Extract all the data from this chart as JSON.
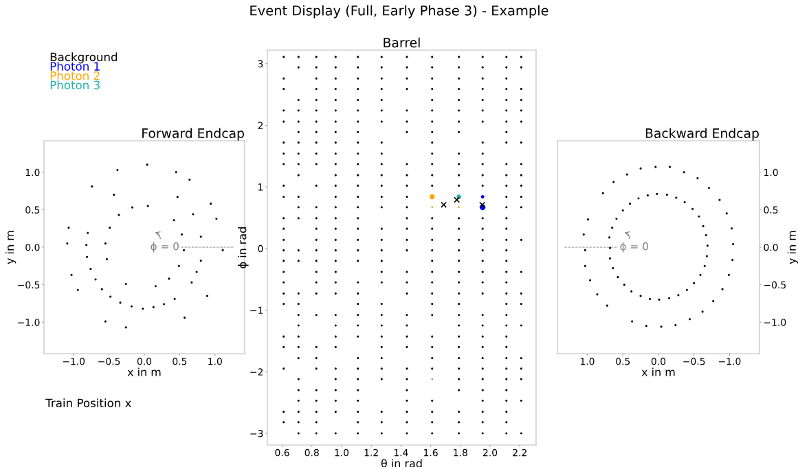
{
  "chart_data": [
    {
      "type": "scatter",
      "title": "Forward Endcap",
      "xlabel": "x in m",
      "ylabel": "y in m",
      "xlim": [
        -1.42,
        1.42
      ],
      "ylim": [
        -1.42,
        1.42
      ],
      "xticks": [
        {
          "value": -1.0,
          "label": "−1.0"
        },
        {
          "value": -0.5,
          "label": "−0.5"
        },
        {
          "value": 0,
          "label": "0.0"
        },
        0.5,
        {
          "value": 1,
          "label": "1.0"
        }
      ],
      "yticks": [
        {
          "value": -1.0,
          "label": "−1.0"
        },
        {
          "value": -0.5,
          "label": "−0.5"
        },
        {
          "value": 0,
          "label": "0.0"
        },
        0.5,
        {
          "value": 1,
          "label": "1.0"
        }
      ],
      "series": [
        {
          "color": "#000000",
          "x": [
            0.04,
            -0.38,
            0.45,
            0.64,
            -0.74,
            -0.43,
            0.47,
            0.94,
            -0.17,
            0.05,
            -0.36,
            0.69,
            1.02,
            0.42,
            -1.07,
            -0.49,
            -0.8,
            0.53,
            0.8,
            -1.09,
            -0.55,
            -0.82,
            0.56,
            1.11,
            -0.81,
            -0.53,
            0.8,
            -0.76,
            0.49,
            0.74,
            -1.03,
            -0.69,
            0.35,
            -0.26,
            0.16,
            0.67,
            -0.94,
            -0.6,
            0.89,
            -0.48,
            0.43,
            -0.34,
            0.28,
            -0.18,
            -0.02,
            0.13,
            0.57,
            -0.55,
            -0.26
          ],
          "values": [
            1.1,
            1.03,
            1.0,
            0.9,
            0.81,
            0.7,
            0.67,
            0.58,
            0.53,
            0.55,
            0.43,
            0.44,
            0.38,
            0.36,
            0.26,
            0.26,
            0.19,
            0.17,
            0.14,
            0.05,
            0.05,
            0.03,
            -0.04,
            -0.04,
            -0.13,
            -0.16,
            -0.18,
            -0.29,
            -0.25,
            -0.33,
            -0.37,
            -0.43,
            -0.42,
            -0.49,
            -0.52,
            -0.47,
            -0.57,
            -0.56,
            -0.65,
            -0.66,
            -0.69,
            -0.74,
            -0.76,
            -0.79,
            -0.82,
            -0.8,
            -0.94,
            -0.99,
            -1.07
          ]
        },
        {
          "type": "line",
          "color": "#808080",
          "line_style": "dashed",
          "x": [
            0.52,
            1.27
          ],
          "values": [
            0,
            0
          ]
        }
      ],
      "annotations": [
        "ϕ = 0",
        "Train Position x"
      ]
    },
    {
      "type": "scatter",
      "title": "Barrel",
      "xlabel": "θ in rad",
      "ylabel": "ϕ in rad",
      "xlim": [
        0.5,
        2.31
      ],
      "ylim": [
        -3.19,
        3.22
      ],
      "xticks": [
        0.6,
        0.8,
        {
          "value": 1,
          "label": "1.0"
        },
        1.2,
        1.4,
        1.6,
        1.8,
        {
          "value": 2,
          "label": "2.0"
        },
        2.2
      ],
      "yticks": [
        {
          "value": -3,
          "label": "−3"
        },
        {
          "value": -2,
          "label": "−2"
        },
        {
          "value": -1,
          "label": "−1"
        },
        0,
        1,
        2,
        3
      ],
      "legend": "top left",
      "series": [
        {
          "name": "Background",
          "color": "#000000",
          "x": [
            0.61,
            0.71,
            0.83,
            0.96,
            1.11,
            1.27,
            1.44,
            1.61,
            1.79,
            1.95,
            2.11,
            2.21,
            0.71,
            0.83,
            0.96,
            1.11,
            1.27,
            1.44,
            1.61,
            1.79,
            1.95,
            2.11,
            2.21,
            0.61,
            0.83,
            0.96,
            1.11,
            1.27,
            1.44,
            1.61,
            1.79,
            1.95,
            2.11,
            0.61,
            0.83,
            0.96,
            1.11,
            1.27,
            1.44,
            1.61,
            1.79,
            1.95,
            2.11,
            2.21,
            0.71,
            0.83,
            0.96,
            1.11,
            1.27,
            1.61,
            1.79,
            1.95,
            2.11,
            2.21,
            0.61,
            0.71,
            0.83,
            0.96,
            1.11,
            1.27,
            1.44,
            1.61,
            1.79,
            1.95,
            2.11,
            2.21,
            0.61,
            0.71,
            0.83,
            0.96,
            1.11,
            1.27,
            1.44,
            1.61,
            1.79,
            1.95,
            2.11,
            2.21,
            0.71,
            0.83,
            0.96,
            1.11,
            1.44,
            1.61,
            1.79,
            2.11,
            0.61,
            0.71,
            0.83,
            0.96,
            1.11,
            1.27,
            1.61,
            1.95,
            2.11,
            2.21,
            0.61,
            0.71,
            0.83,
            0.96,
            1.11,
            1.27,
            1.61,
            1.79,
            1.95,
            0.61,
            0.71,
            0.83,
            0.96,
            1.11,
            1.27,
            1.44,
            1.61,
            1.79,
            1.95,
            2.11,
            2.21,
            0.71,
            0.96,
            1.11,
            1.27,
            1.44,
            1.61,
            1.79,
            1.95,
            2.11,
            2.21,
            0.61,
            0.83,
            0.96,
            1.11,
            1.27,
            1.44,
            1.61,
            1.79,
            1.95,
            2.11,
            2.21,
            0.61,
            0.71,
            0.96,
            1.11,
            1.27,
            1.44,
            2.11,
            2.21,
            0.71,
            0.83,
            0.96,
            1.11,
            1.27,
            1.44,
            2.11,
            2.21,
            0.61,
            0.71,
            0.83,
            0.96,
            1.11,
            1.44,
            1.61,
            1.79,
            1.95,
            2.11,
            0.61,
            0.83,
            0.96,
            1.11,
            1.27,
            1.44,
            1.61,
            1.79,
            1.95,
            2.11,
            0.61,
            0.83,
            0.96,
            1.11,
            1.27,
            1.44,
            1.61,
            1.79,
            1.95,
            2.11,
            2.21,
            0.61,
            0.71,
            0.83,
            0.96,
            1.11,
            1.27,
            1.44,
            1.61,
            1.79,
            1.95,
            2.11,
            0.61,
            0.71,
            0.83,
            0.96,
            1.11,
            1.27,
            1.61,
            1.79,
            1.95,
            2.11,
            0.61,
            0.83,
            0.96,
            1.27,
            1.44,
            1.61,
            1.79,
            1.95,
            2.11,
            2.21,
            0.61,
            0.83,
            0.96,
            1.11,
            1.27,
            1.44,
            1.61,
            1.79,
            1.95,
            2.11,
            0.61,
            0.71,
            0.83,
            0.96,
            1.11,
            1.44,
            1.61,
            1.79,
            1.95,
            2.11,
            2.21,
            0.61,
            0.71,
            1.11,
            1.27,
            1.61,
            1.79,
            2.11,
            2.21,
            0.71,
            0.83,
            0.96,
            1.11,
            1.27,
            1.44,
            1.61,
            1.79,
            1.95,
            2.11,
            0.71,
            0.96,
            1.11,
            1.27,
            1.44,
            1.79,
            1.95,
            2.11,
            2.21,
            0.61,
            0.71,
            0.96,
            1.11,
            1.27,
            1.44,
            1.61,
            1.79,
            1.95,
            2.11,
            0.61,
            0.71,
            0.83,
            0.96,
            1.27,
            1.44,
            1.61,
            1.79,
            1.95,
            2.11,
            0.71,
            0.83,
            1.11,
            1.27,
            1.61,
            1.79,
            1.95,
            2.11,
            2.21,
            0.61,
            0.83,
            0.96,
            1.11,
            1.27,
            1.44,
            1.61,
            1.79,
            1.95,
            2.11,
            2.21,
            0.71,
            0.96,
            1.11,
            1.27,
            1.44,
            1.79,
            1.95,
            2.11,
            2.21,
            0.71,
            0.83,
            0.96,
            1.11,
            1.44,
            1.79,
            1.95,
            2.11,
            0.71,
            0.83,
            0.96,
            1.11,
            1.44,
            1.61,
            1.95,
            2.11,
            2.21,
            0.61,
            0.71,
            0.83,
            0.96,
            1.11,
            1.27,
            1.44,
            1.61,
            1.79,
            1.95,
            2.11,
            0.61,
            0.71,
            0.83,
            1.11,
            1.27,
            1.44,
            1.61,
            1.79,
            1.95,
            2.11,
            0.71,
            0.83,
            0.96,
            1.11,
            1.27,
            1.44,
            1.61,
            1.79,
            1.95,
            2.11,
            2.21
          ],
          "values": [
            3.11,
            3.11,
            3.11,
            3.11,
            3.11,
            3.11,
            3.11,
            3.11,
            3.11,
            3.11,
            3.11,
            3.11,
            2.94,
            2.94,
            2.94,
            2.94,
            2.94,
            2.94,
            2.94,
            2.94,
            2.94,
            2.94,
            2.94,
            2.76,
            2.76,
            2.76,
            2.76,
            2.76,
            2.76,
            2.76,
            2.76,
            2.76,
            2.76,
            2.59,
            2.59,
            2.59,
            2.59,
            2.59,
            2.59,
            2.59,
            2.59,
            2.59,
            2.59,
            2.59,
            2.41,
            2.41,
            2.41,
            2.41,
            2.41,
            2.41,
            2.41,
            2.41,
            2.41,
            2.41,
            2.24,
            2.24,
            2.24,
            2.24,
            2.24,
            2.24,
            2.24,
            2.24,
            2.24,
            2.24,
            2.24,
            2.24,
            2.06,
            2.06,
            2.06,
            2.06,
            2.06,
            2.06,
            2.06,
            2.06,
            2.06,
            2.06,
            2.06,
            2.06,
            1.89,
            1.89,
            1.89,
            1.89,
            1.89,
            1.89,
            1.89,
            1.89,
            1.72,
            1.72,
            1.72,
            1.72,
            1.72,
            1.72,
            1.72,
            1.72,
            1.72,
            1.72,
            1.54,
            1.54,
            1.54,
            1.54,
            1.54,
            1.54,
            1.54,
            1.54,
            1.54,
            1.37,
            1.37,
            1.37,
            1.37,
            1.37,
            1.37,
            1.37,
            1.37,
            1.37,
            1.37,
            1.37,
            1.37,
            1.19,
            1.19,
            1.19,
            1.19,
            1.19,
            1.19,
            1.19,
            1.19,
            1.19,
            1.19,
            1.02,
            1.02,
            1.02,
            1.02,
            1.02,
            1.02,
            1.02,
            1.02,
            1.02,
            1.02,
            1.02,
            0.84,
            0.84,
            0.84,
            0.84,
            0.84,
            0.84,
            0.84,
            0.84,
            0.67,
            0.67,
            0.67,
            0.67,
            0.67,
            0.67,
            0.67,
            0.67,
            0.49,
            0.49,
            0.49,
            0.49,
            0.49,
            0.49,
            0.49,
            0.49,
            0.49,
            0.49,
            0.32,
            0.32,
            0.32,
            0.32,
            0.32,
            0.32,
            0.32,
            0.32,
            0.32,
            0.32,
            0.14,
            0.14,
            0.14,
            0.14,
            0.14,
            0.14,
            0.14,
            0.14,
            0.14,
            0.14,
            0.14,
            -0.03,
            -0.03,
            -0.03,
            -0.03,
            -0.03,
            -0.03,
            -0.03,
            -0.03,
            -0.03,
            -0.03,
            -0.03,
            -0.2,
            -0.2,
            -0.2,
            -0.2,
            -0.2,
            -0.2,
            -0.2,
            -0.2,
            -0.2,
            -0.2,
            -0.38,
            -0.38,
            -0.38,
            -0.38,
            -0.38,
            -0.38,
            -0.38,
            -0.38,
            -0.38,
            -0.38,
            -0.55,
            -0.55,
            -0.55,
            -0.55,
            -0.55,
            -0.55,
            -0.55,
            -0.55,
            -0.55,
            -0.55,
            -0.73,
            -0.73,
            -0.73,
            -0.73,
            -0.73,
            -0.73,
            -0.73,
            -0.73,
            -0.73,
            -0.73,
            -0.73,
            -0.9,
            -0.9,
            -0.9,
            -0.9,
            -0.9,
            -0.9,
            -0.9,
            -0.9,
            -1.08,
            -1.08,
            -1.08,
            -1.08,
            -1.08,
            -1.08,
            -1.08,
            -1.08,
            -1.08,
            -1.08,
            -1.25,
            -1.25,
            -1.25,
            -1.25,
            -1.25,
            -1.25,
            -1.25,
            -1.25,
            -1.25,
            -1.43,
            -1.43,
            -1.43,
            -1.43,
            -1.43,
            -1.43,
            -1.43,
            -1.43,
            -1.43,
            -1.43,
            -1.6,
            -1.6,
            -1.6,
            -1.6,
            -1.6,
            -1.6,
            -1.6,
            -1.6,
            -1.6,
            -1.6,
            -1.78,
            -1.78,
            -1.78,
            -1.78,
            -1.78,
            -1.78,
            -1.78,
            -1.78,
            -1.78,
            -1.95,
            -1.95,
            -1.95,
            -1.95,
            -1.95,
            -1.95,
            -1.95,
            -1.95,
            -1.95,
            -1.95,
            -1.95,
            -2.12,
            -2.12,
            -2.12,
            -2.12,
            -2.12,
            -2.12,
            -2.12,
            -2.12,
            -2.12,
            -2.3,
            -2.3,
            -2.3,
            -2.3,
            -2.3,
            -2.3,
            -2.3,
            -2.3,
            -2.47,
            -2.47,
            -2.47,
            -2.47,
            -2.47,
            -2.47,
            -2.47,
            -2.47,
            -2.47,
            -2.65,
            -2.65,
            -2.65,
            -2.65,
            -2.65,
            -2.65,
            -2.65,
            -2.65,
            -2.65,
            -2.65,
            -2.65,
            -2.82,
            -2.82,
            -2.82,
            -2.82,
            -2.82,
            -2.82,
            -2.82,
            -2.82,
            -2.82,
            -2.82,
            -3.0,
            -3.0,
            -3.0,
            -3.0,
            -3.0,
            -3.0,
            -3.0,
            -3.0,
            -3.0,
            -3.0,
            -3.0
          ]
        },
        {
          "name": "Photon 1",
          "type": "bubble",
          "color": "#0000ff",
          "x": [
            1.95,
            1.95,
            1.61
          ],
          "values": [
            0.84,
            0.67,
            -2.12
          ],
          "sizes": [
            0.35,
            1,
            0.05
          ]
        },
        {
          "name": "Photon 2",
          "type": "bubble",
          "color": "#ffa500",
          "x": [
            1.61,
            1.61,
            1.79
          ],
          "values": [
            0.84,
            0.67,
            0.67
          ],
          "sizes": [
            0.8,
            0.12,
            0.12
          ]
        },
        {
          "name": "Photon 3",
          "type": "bubble",
          "color": "#20b2aa",
          "x": [
            1.79
          ],
          "values": [
            0.84
          ],
          "sizes": [
            0.6
          ]
        },
        {
          "type": "scatter",
          "marker": "cross",
          "color": "#000000",
          "x": [
            1.688,
            1.776,
            1.947
          ],
          "values": [
            0.71,
            0.79,
            0.71
          ]
        }
      ],
      "annotations": [
        "Event Display (Full, Early Phase 3) - Example"
      ]
    },
    {
      "type": "scatter",
      "title": "Backward Endcap",
      "xlabel": "x in m",
      "ylabel": "y in m",
      "xlim": [
        1.42,
        -1.42
      ],
      "ylim": [
        -1.42,
        1.42
      ],
      "xticks": [
        {
          "value": 1,
          "label": "1.0"
        },
        0.5,
        {
          "value": 0,
          "label": "0.0"
        },
        {
          "value": -0.5,
          "label": "−0.5"
        },
        {
          "value": -1.0,
          "label": "−1.0"
        }
      ],
      "yticks": [
        {
          "value": -1.0,
          "label": "−1.0"
        },
        {
          "value": -0.5,
          "label": "−0.5"
        },
        {
          "value": 0,
          "label": "0.0"
        },
        0.5,
        {
          "value": 1,
          "label": "1.0"
        }
      ],
      "series": [
        {
          "color": "#000000",
          "x": [
            0.25,
            0.04,
            -0.16,
            0.44,
            -0.36,
            -0.55,
            0.63,
            -0.71,
            0.78,
            -0.86,
            0.99,
            -0.96,
            1.05,
            -1.03,
            -1.05,
            1.03,
            -1.04,
            1.03,
            -0.99,
            0.96,
            -0.9,
            0.86,
            -0.77,
            0.72,
            -0.62,
            -0.44,
            0.37,
            -0.24,
            0.17,
            -0.04,
            0.02,
            0.15,
            -0.12,
            0.28,
            -0.25,
            0.4,
            -0.37,
            0.5,
            -0.48,
            0.59,
            -0.57,
            0.65,
            -0.63,
            0.69,
            -0.67,
            0.68,
            -0.69,
            0.68,
            -0.68,
            0.64,
            -0.65,
            0.57,
            -0.59,
            0.48,
            -0.5,
            0.38,
            -0.4,
            0.25,
            -0.28,
            0.12,
            -0.15,
            -0.01
          ],
          "values": [
            1.05,
            1.07,
            1.07,
            0.97,
            1.0,
            0.92,
            0.87,
            0.79,
            0.72,
            0.63,
            0.37,
            0.45,
            0.17,
            0.25,
            0.04,
            -0.04,
            -0.17,
            -0.25,
            -0.37,
            -0.44,
            -0.56,
            -0.63,
            -0.72,
            -0.78,
            -0.86,
            -0.96,
            -0.99,
            -1.04,
            -1.05,
            -1.06,
            0.71,
            0.69,
            0.7,
            0.65,
            0.66,
            0.58,
            0.6,
            0.49,
            0.51,
            0.38,
            0.41,
            0.26,
            0.28,
            0.13,
            0.16,
            -0.01,
            0.02,
            -0.15,
            -0.12,
            -0.28,
            -0.25,
            -0.4,
            -0.37,
            -0.5,
            -0.48,
            -0.59,
            -0.57,
            -0.65,
            -0.64,
            -0.69,
            -0.68,
            -0.7
          ]
        },
        {
          "type": "line",
          "color": "#808080",
          "line_style": "dashed",
          "x": [
            1.32,
            0.57
          ],
          "values": [
            0,
            0
          ]
        }
      ],
      "annotations": [
        "ϕ = 0"
      ]
    }
  ]
}
